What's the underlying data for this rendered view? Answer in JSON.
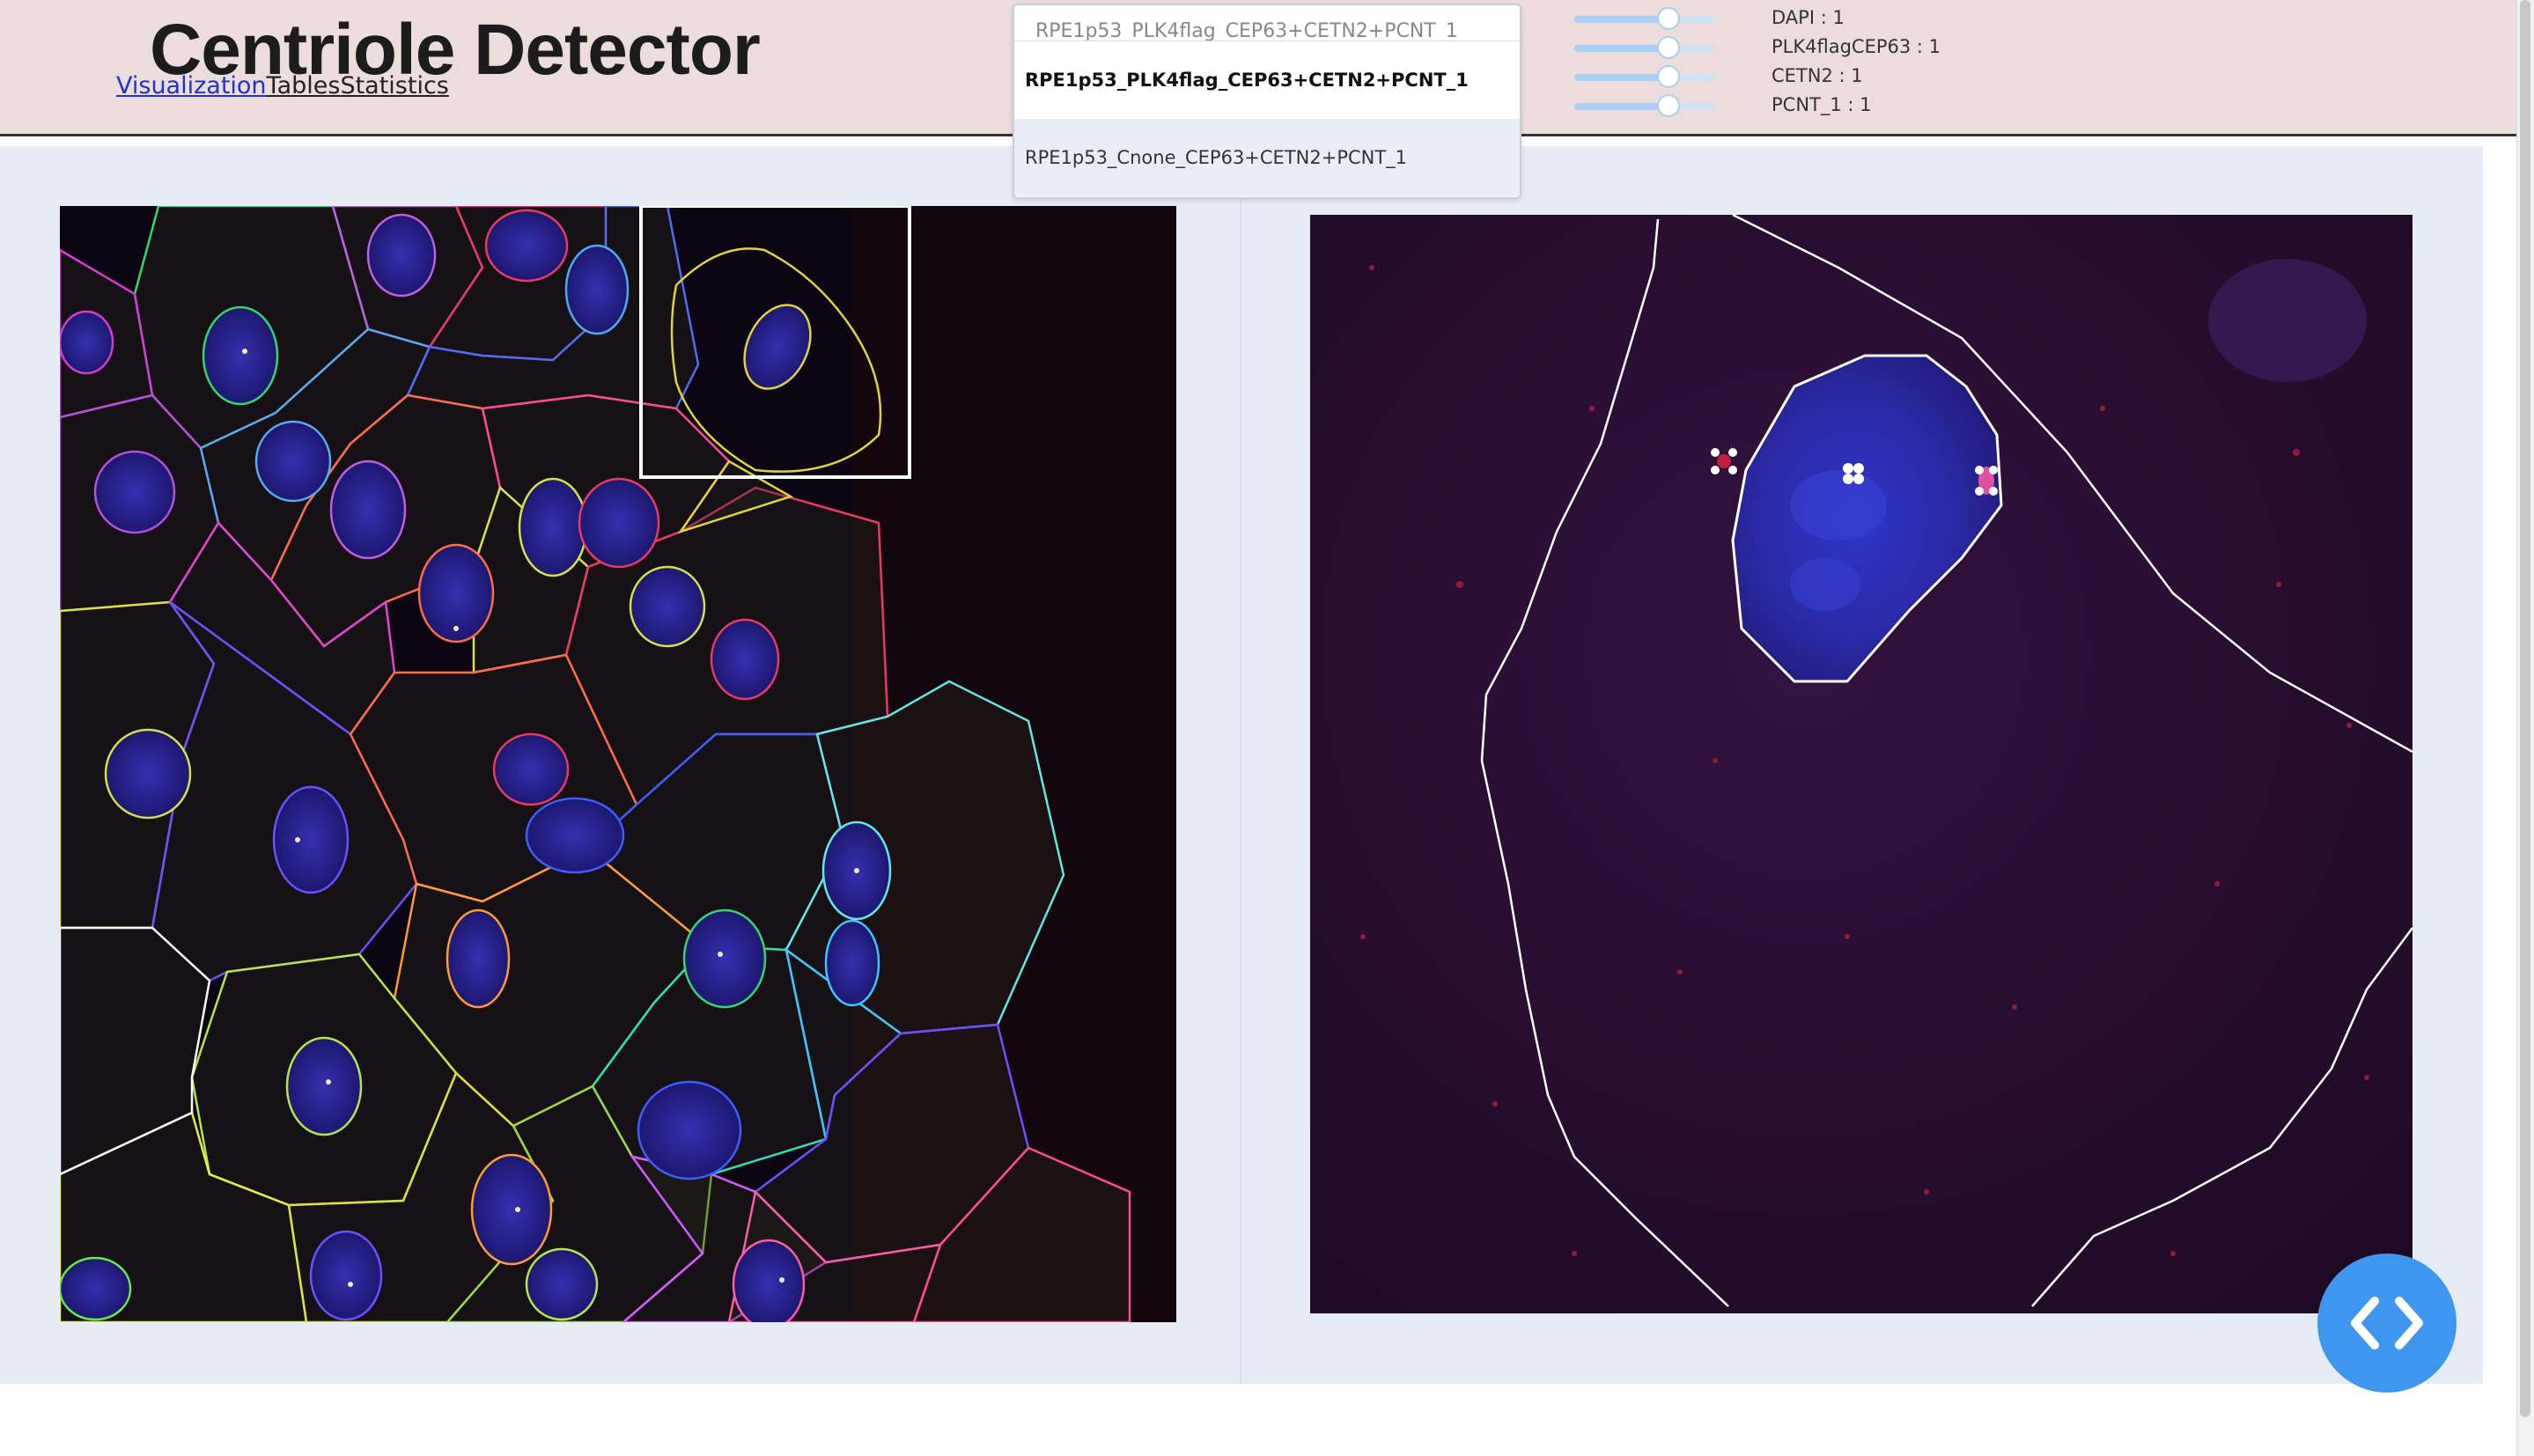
{
  "app": {
    "title": "Centriole Detector"
  },
  "nav": {
    "items": [
      "Visualization",
      "Tables",
      "Statistics"
    ],
    "active": "Visualization"
  },
  "dataset_dropdown": {
    "input_text": "RPE1p53_PLK4flag_CEP63+CETN2+PCNT_1",
    "options": [
      {
        "label": "RPE1p53_PLK4flag_CEP63+CETN2+PCNT_1",
        "selected": true
      },
      {
        "label": "RPE1p53_Cnone_CEP63+CETN2+PCNT_1",
        "selected": false
      }
    ]
  },
  "channels": [
    {
      "label": "DAPI : 1",
      "value": 1
    },
    {
      "label": "PLK4flagCEP63 : 1",
      "value": 1
    },
    {
      "label": "CETN2 : 1",
      "value": 1
    },
    {
      "label": "PCNT_1 : 1",
      "value": 1
    }
  ],
  "colors": {
    "header_bg": "#ecdcdc",
    "panel_bg": "#e6ecf5",
    "nav_active": "#1f33c9",
    "slider_track": "#cfe2f3",
    "fab": "#3f96ee"
  },
  "icons": {
    "fab": "code-chevrons-icon"
  }
}
